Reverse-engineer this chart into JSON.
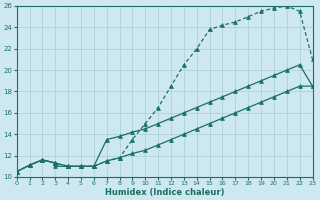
{
  "xlabel": "Humidex (Indice chaleur)",
  "xlim": [
    0,
    23
  ],
  "ylim": [
    10,
    26
  ],
  "xticks": [
    0,
    1,
    2,
    3,
    4,
    5,
    6,
    7,
    8,
    9,
    10,
    11,
    12,
    13,
    14,
    15,
    16,
    17,
    18,
    19,
    20,
    21,
    22,
    23
  ],
  "yticks": [
    10,
    12,
    14,
    16,
    18,
    20,
    22,
    24,
    26
  ],
  "bg_color": "#cde8ee",
  "grid_color": "#a8cdd6",
  "line_color": "#1a7060",
  "curve1_x": [
    0,
    1,
    2,
    3,
    4,
    5,
    6,
    7,
    8,
    9,
    10,
    11,
    12,
    13,
    14,
    15,
    16,
    17,
    18,
    19,
    20,
    21,
    22,
    23
  ],
  "curve1_y": [
    10.5,
    11.1,
    11.6,
    11.3,
    11.0,
    11.0,
    11.0,
    11.5,
    11.8,
    13.5,
    15.0,
    16.5,
    18.5,
    20.5,
    22.0,
    23.8,
    24.2,
    24.5,
    25.0,
    25.5,
    25.8,
    26.0,
    25.5,
    21.0
  ],
  "curve2_x": [
    0,
    1,
    2,
    3,
    4,
    5,
    6,
    7,
    8,
    9,
    10,
    11,
    12,
    13,
    14,
    15,
    16,
    17,
    18,
    19,
    20,
    21,
    22,
    23
  ],
  "curve2_y": [
    10.5,
    11.1,
    11.6,
    11.3,
    11.0,
    11.0,
    11.0,
    11.5,
    11.8,
    12.2,
    12.5,
    13.0,
    13.5,
    14.0,
    14.5,
    15.0,
    15.5,
    16.0,
    16.5,
    17.0,
    17.5,
    18.0,
    18.5,
    18.5
  ],
  "curve3_x": [
    0,
    1,
    2,
    3,
    3,
    4,
    5,
    6,
    7,
    8,
    9,
    10,
    11,
    12,
    13,
    14,
    15,
    16,
    17,
    18,
    19,
    20,
    21,
    22,
    23
  ],
  "curve3_y": [
    10.5,
    11.1,
    11.6,
    11.3,
    11.0,
    11.0,
    11.0,
    11.0,
    13.5,
    13.8,
    14.2,
    14.5,
    15.0,
    15.5,
    16.0,
    16.5,
    17.0,
    17.5,
    18.0,
    18.5,
    19.0,
    19.5,
    20.0,
    20.5,
    18.5
  ]
}
